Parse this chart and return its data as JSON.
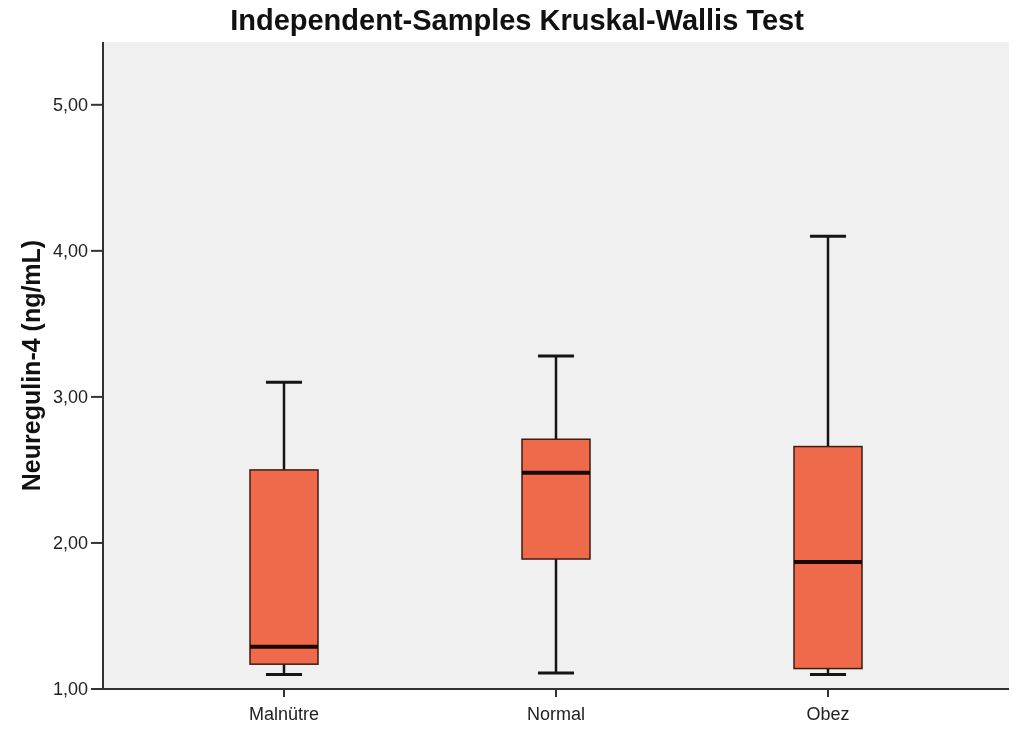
{
  "chart_data": {
    "type": "box",
    "title": "Independent-Samples Kruskal-Wallis Test",
    "ylabel": "Neuregulin-4 (ng/mL)",
    "categories": [
      "Malnütre",
      "Normal",
      "Obez"
    ],
    "boxes": [
      {
        "low": 1.1,
        "q1": 1.17,
        "median": 1.29,
        "q3": 2.5,
        "high": 3.1
      },
      {
        "low": 1.11,
        "q1": 1.89,
        "median": 2.48,
        "q3": 2.71,
        "high": 3.28
      },
      {
        "low": 1.1,
        "q1": 1.14,
        "median": 1.87,
        "q3": 2.66,
        "high": 4.1
      }
    ],
    "color": "#ef6a4b",
    "ylim": [
      1,
      5.43
    ],
    "yticks": [
      {
        "value": 1,
        "label": "1,00"
      },
      {
        "value": 2,
        "label": "2,00"
      },
      {
        "value": 3,
        "label": "3,00"
      },
      {
        "value": 4,
        "label": "4,00"
      },
      {
        "value": 5,
        "label": "5,00"
      }
    ],
    "grid": false
  }
}
